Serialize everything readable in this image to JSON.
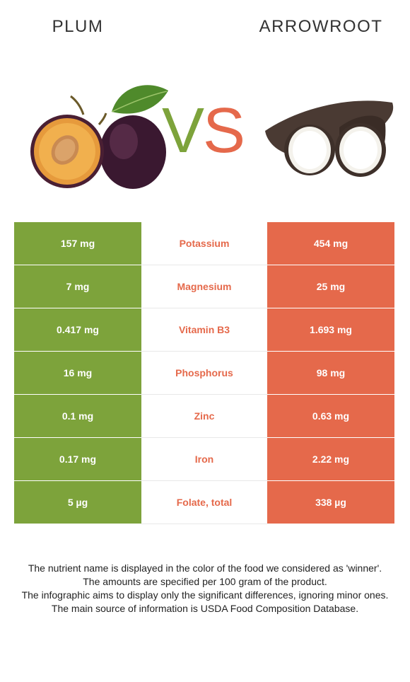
{
  "header": {
    "left_food": "PLUM",
    "right_food": "ARROWROOT",
    "vs_v": "V",
    "vs_s": "S"
  },
  "colors": {
    "left_food_color": "#7da33b",
    "right_food_color": "#e5694b"
  },
  "rows": [
    {
      "left": "157 mg",
      "nutrient": "Potassium",
      "right": "454 mg",
      "winner": "right"
    },
    {
      "left": "7 mg",
      "nutrient": "Magnesium",
      "right": "25 mg",
      "winner": "right"
    },
    {
      "left": "0.417 mg",
      "nutrient": "Vitamin B3",
      "right": "1.693 mg",
      "winner": "right"
    },
    {
      "left": "16 mg",
      "nutrient": "Phosphorus",
      "right": "98 mg",
      "winner": "right"
    },
    {
      "left": "0.1 mg",
      "nutrient": "Zinc",
      "right": "0.63 mg",
      "winner": "right"
    },
    {
      "left": "0.17 mg",
      "nutrient": "Iron",
      "right": "2.22 mg",
      "winner": "right"
    },
    {
      "left": "5 µg",
      "nutrient": "Folate, total",
      "right": "338 µg",
      "winner": "right"
    }
  ],
  "footer": {
    "line1": "The nutrient name is displayed in the color of the food we considered as 'winner'.",
    "line2": "The amounts are specified per 100 gram of the product.",
    "line3": "The infographic aims to display only the significant differences, ignoring minor ones.",
    "line4": "The main source of information is USDA Food Composition Database."
  }
}
